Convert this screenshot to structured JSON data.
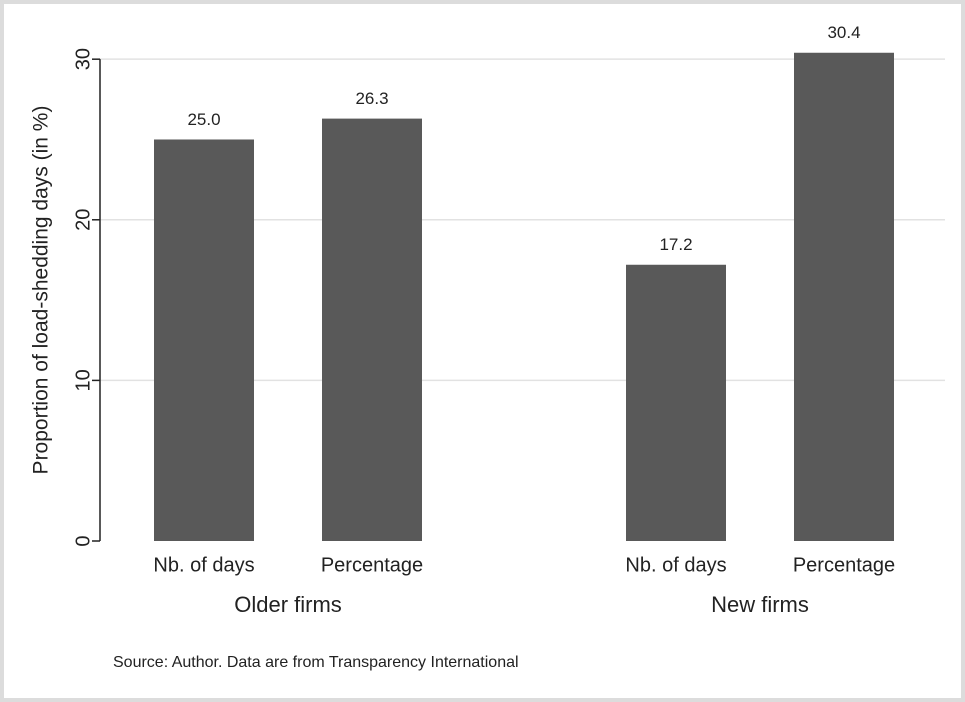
{
  "chart_data": {
    "type": "grouped-bar",
    "y_label": "Proportion of load-shedding days (in %)",
    "source": "Source: Author. Data are from Transparency International",
    "color": "#595959",
    "groups": [
      {
        "name": "Older firms",
        "categories": [
          "Nb. of days",
          "Percentage"
        ],
        "values": [
          25,
          26.3
        ],
        "value_labels": [
          "25.0",
          "26.3"
        ]
      },
      {
        "name": "New firms",
        "categories": [
          "Nb. of days",
          "Percentage"
        ],
        "values": [
          17.2,
          30.4
        ],
        "value_labels": [
          "17.2",
          "30.4"
        ]
      }
    ],
    "ylim": [
      0,
      33
    ],
    "yticks": [
      0,
      10,
      20,
      30
    ],
    "grid": true
  }
}
